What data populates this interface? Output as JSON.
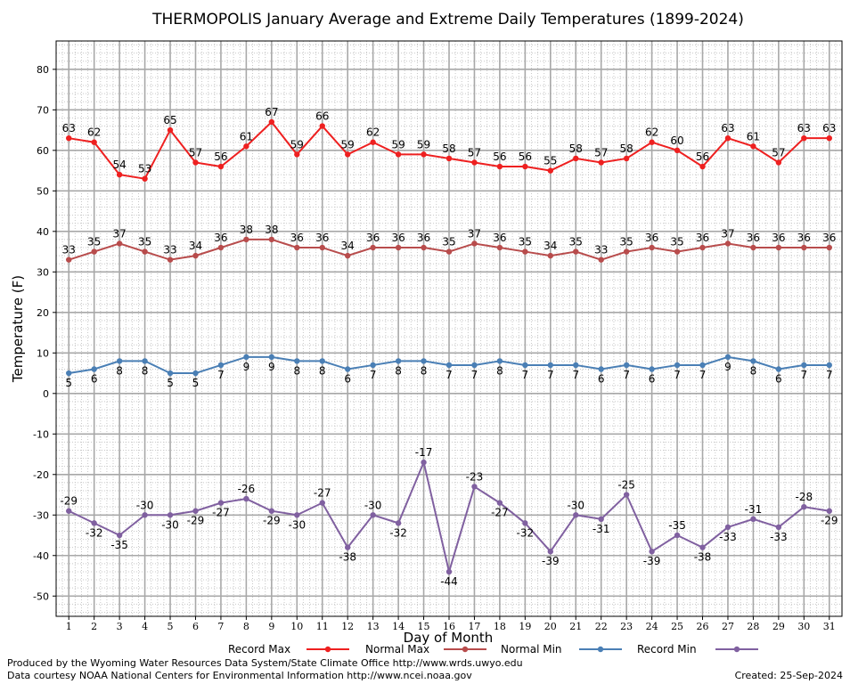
{
  "chart_data": {
    "type": "line",
    "title": "THERMOPOLIS January Average and Extreme Daily Temperatures (1899-2024)",
    "xlabel": "Day of Month",
    "ylabel": "Temperature (F)",
    "x": [
      1,
      2,
      3,
      4,
      5,
      6,
      7,
      8,
      9,
      10,
      11,
      12,
      13,
      14,
      15,
      16,
      17,
      18,
      19,
      20,
      21,
      22,
      23,
      24,
      25,
      26,
      27,
      28,
      29,
      30,
      31
    ],
    "xlim": [
      0.5,
      31.5
    ],
    "ylim": [
      -55,
      87
    ],
    "yticks": [
      80,
      70,
      60,
      50,
      40,
      30,
      20,
      10,
      0,
      -10,
      -20,
      -30,
      -40,
      -50
    ],
    "grid": true,
    "legend_position": "bottom",
    "series": [
      {
        "name": "Record Max",
        "color": "#ee2020",
        "values": [
          63,
          62,
          54,
          53,
          65,
          57,
          56,
          61,
          67,
          59,
          66,
          59,
          62,
          59,
          59,
          58,
          57,
          56,
          56,
          55,
          58,
          57,
          58,
          62,
          60,
          56,
          63,
          61,
          57,
          63,
          63
        ]
      },
      {
        "name": "Normal Max",
        "color": "#b84c4c",
        "values": [
          33,
          35,
          37,
          35,
          33,
          34,
          36,
          38,
          38,
          36,
          36,
          34,
          36,
          36,
          36,
          35,
          37,
          36,
          35,
          34,
          35,
          33,
          35,
          36,
          35,
          36,
          37,
          36,
          36,
          36,
          36
        ]
      },
      {
        "name": "Normal Min",
        "color": "#4a7fb5",
        "values": [
          5,
          6,
          8,
          8,
          5,
          5,
          7,
          9,
          9,
          8,
          8,
          6,
          7,
          8,
          8,
          7,
          7,
          8,
          7,
          7,
          7,
          6,
          7,
          6,
          7,
          7,
          9,
          8,
          6,
          7,
          7
        ]
      },
      {
        "name": "Record Min",
        "color": "#8060a0",
        "values": [
          -29,
          -32,
          -35,
          -30,
          -30,
          -29,
          -27,
          -26,
          -29,
          -30,
          -27,
          -38,
          -30,
          -32,
          -17,
          -44,
          -23,
          -27,
          -32,
          -39,
          -30,
          -31,
          -25,
          -39,
          -35,
          -38,
          -33,
          -31,
          -33,
          -28,
          -29
        ]
      }
    ]
  },
  "footer": {
    "line1": "Produced by the Wyoming Water Resources Data System/State Climate Office http://www.wrds.uwyo.edu",
    "line2": "Data courtesy NOAA National Centers for Environmental Information http://www.ncei.noaa.gov",
    "created": "Created:  25-Sep-2024"
  }
}
